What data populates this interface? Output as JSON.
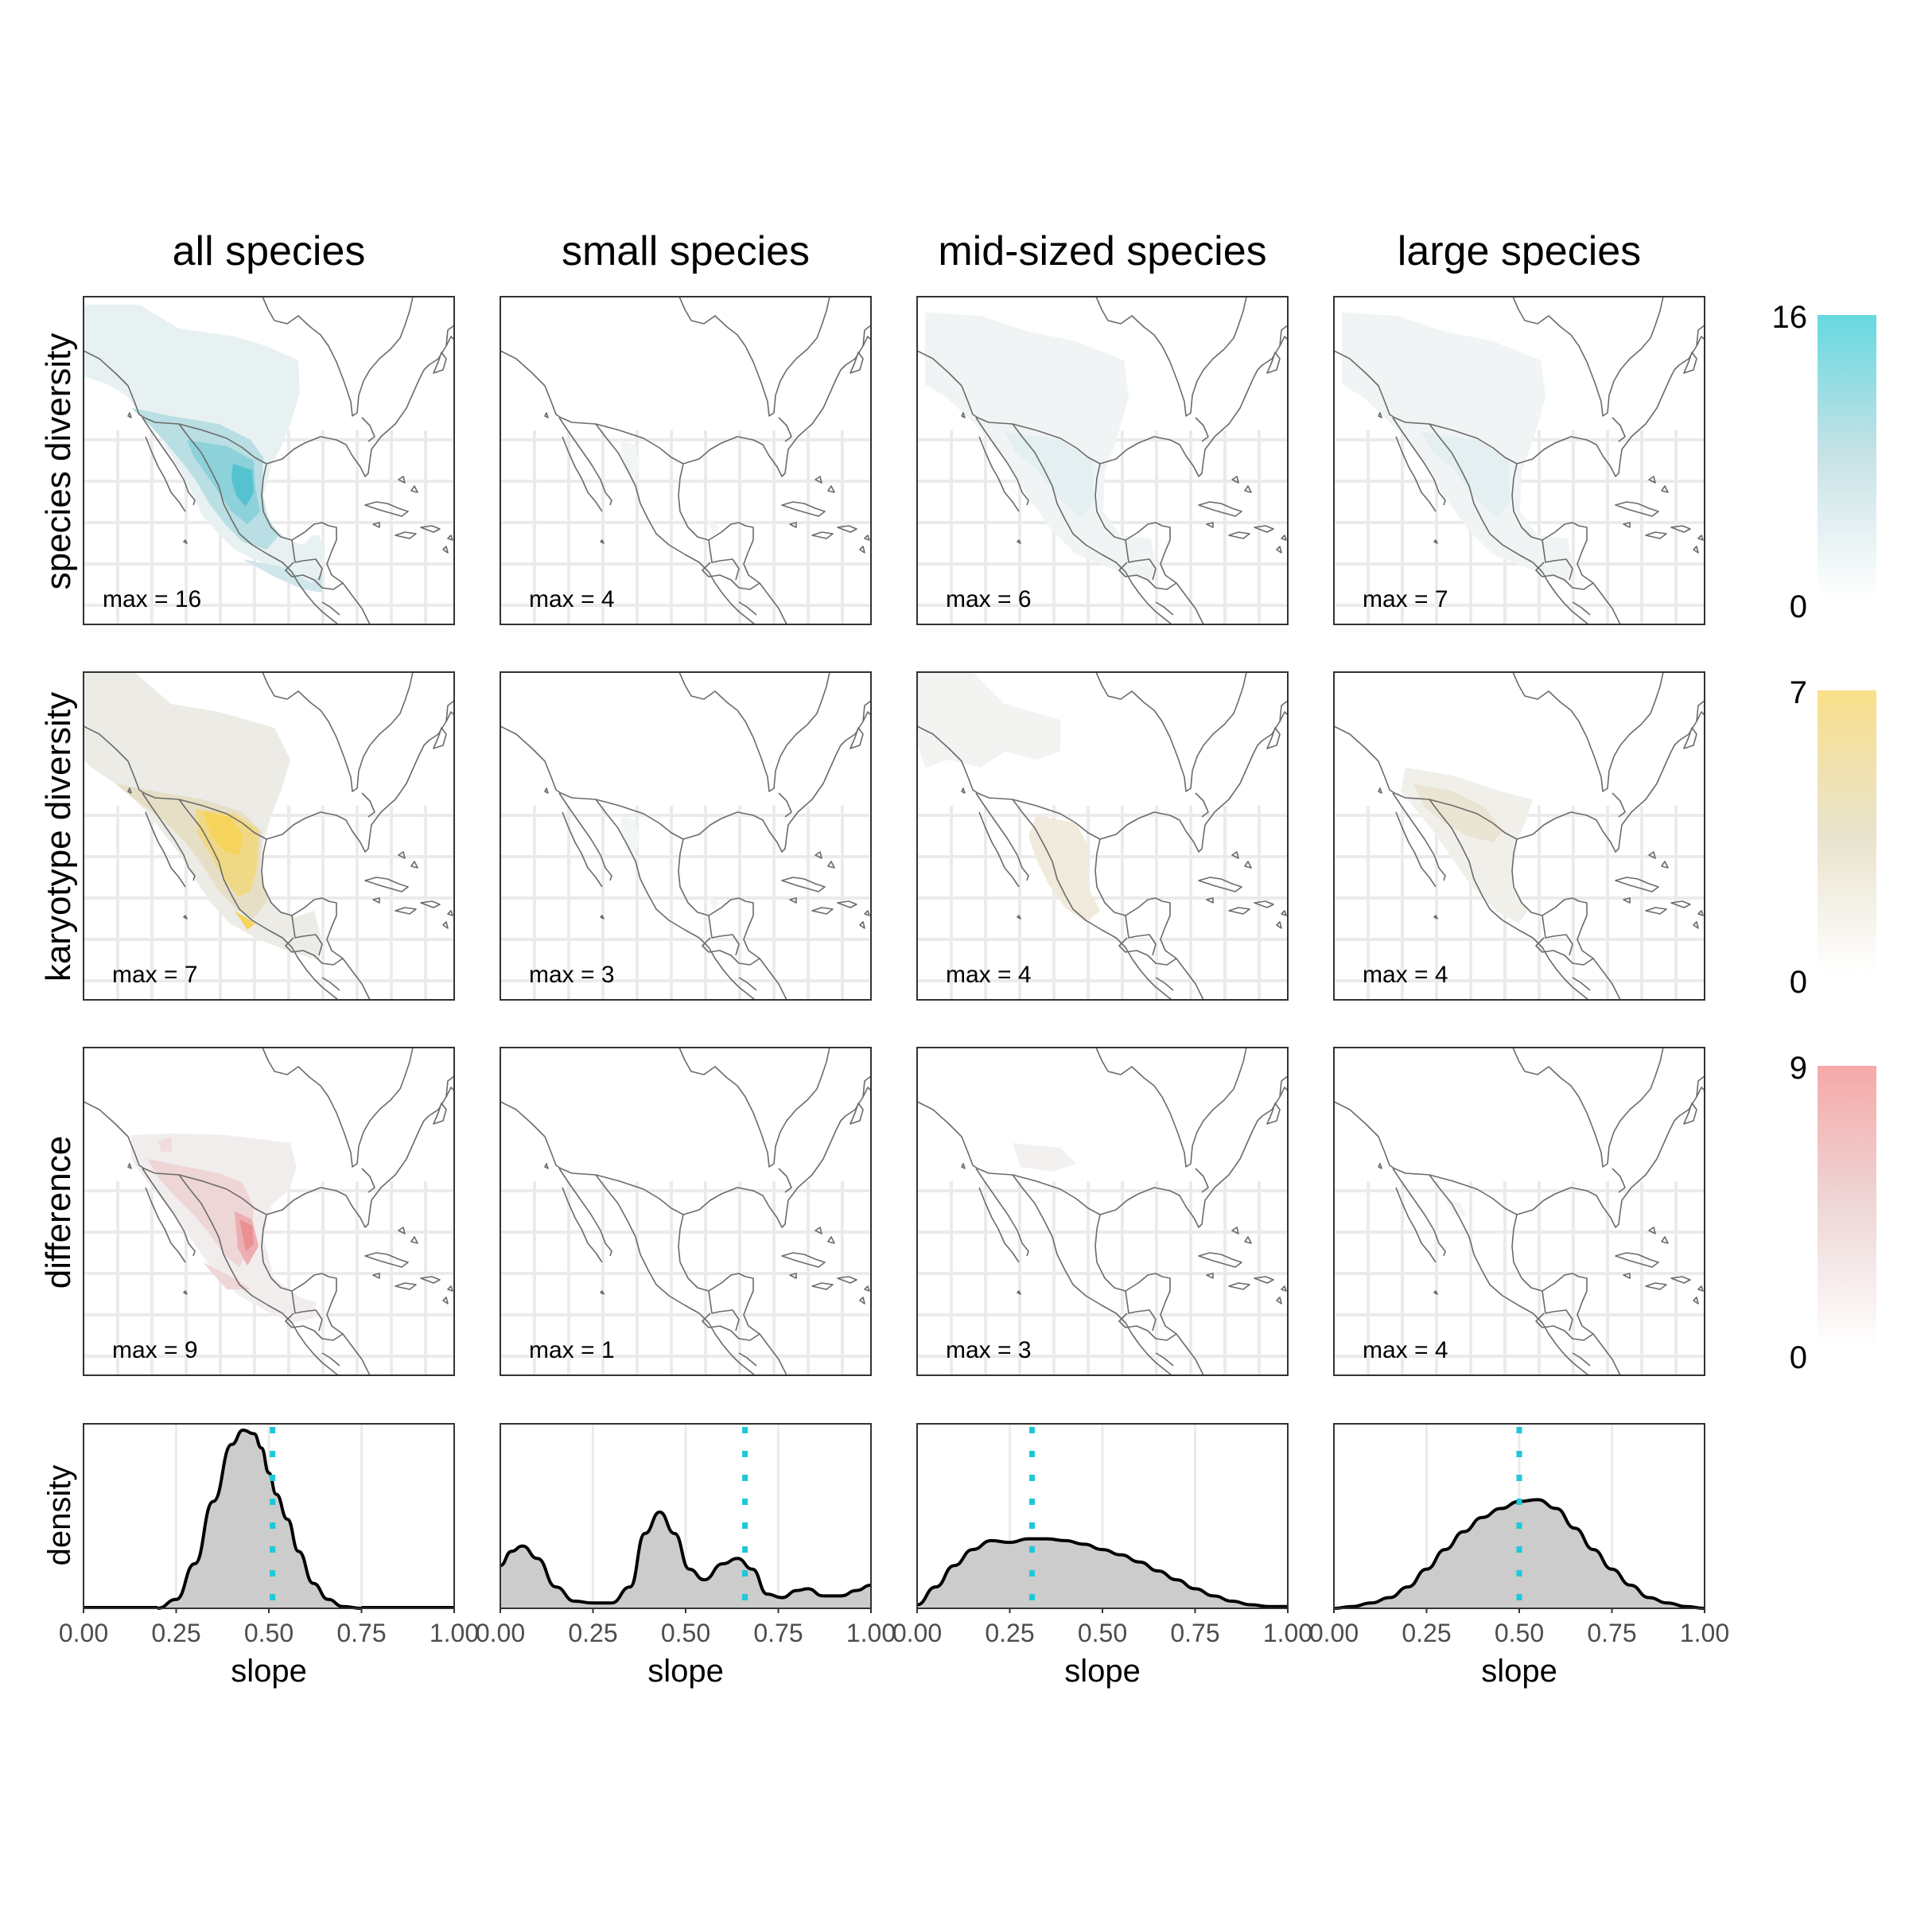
{
  "columns": [
    "all species",
    "small species",
    "mid-sized species",
    "large species"
  ],
  "rows": [
    "species diversity",
    "karyotype diversity",
    "difference"
  ],
  "max_prefix": "max = ",
  "maps": [
    [
      {
        "max": "16"
      },
      {
        "max": "4"
      },
      {
        "max": "6"
      },
      {
        "max": "7"
      }
    ],
    [
      {
        "max": "7"
      },
      {
        "max": "3"
      },
      {
        "max": "4"
      },
      {
        "max": "4"
      }
    ],
    [
      {
        "max": "9"
      },
      {
        "max": "1"
      },
      {
        "max": "3"
      },
      {
        "max": "4"
      }
    ]
  ],
  "legends": [
    {
      "max": "16",
      "min": "0",
      "color": "#66d9e0"
    },
    {
      "max": "7",
      "min": "0",
      "color": "#f9e08a"
    },
    {
      "max": "9",
      "min": "0",
      "color": "#f6a9a9"
    }
  ],
  "colors": {
    "species": "#5fc7d4",
    "karyotype": "#f3cf4d",
    "difference": "#e86f6f",
    "density_fill": "#cccccc",
    "dotted_line": "#1ec8d8",
    "map_outline": "#6b6b6b",
    "grid": "#ebebeb"
  },
  "chart_data": [
    {
      "type": "area",
      "title": "all species",
      "xlabel": "slope",
      "ylabel": "density",
      "xlim": [
        0,
        1
      ],
      "x_ticks": [
        "0.00",
        "0.25",
        "0.50",
        "0.75",
        "1.00"
      ],
      "observed_slope": 0.51,
      "x": [
        0.2,
        0.25,
        0.3,
        0.35,
        0.4,
        0.43,
        0.46,
        0.48,
        0.5,
        0.52,
        0.55,
        0.58,
        0.62,
        0.66,
        0.7,
        0.75
      ],
      "y": [
        0.0,
        0.05,
        0.25,
        0.6,
        0.92,
        1.0,
        0.98,
        0.9,
        0.76,
        0.64,
        0.5,
        0.32,
        0.14,
        0.05,
        0.01,
        0.0
      ]
    },
    {
      "type": "area",
      "title": "small species",
      "xlabel": "slope",
      "ylabel": "density",
      "xlim": [
        0,
        1
      ],
      "x_ticks": [
        "0.00",
        "0.25",
        "0.50",
        "0.75",
        "1.00"
      ],
      "observed_slope": 0.66,
      "x": [
        0.0,
        0.03,
        0.06,
        0.1,
        0.15,
        0.2,
        0.25,
        0.3,
        0.35,
        0.39,
        0.43,
        0.47,
        0.51,
        0.55,
        0.6,
        0.64,
        0.68,
        0.72,
        0.76,
        0.8,
        0.83,
        0.87,
        0.92,
        0.96,
        1.0
      ],
      "y": [
        0.24,
        0.32,
        0.35,
        0.28,
        0.12,
        0.04,
        0.03,
        0.03,
        0.12,
        0.42,
        0.54,
        0.42,
        0.22,
        0.16,
        0.25,
        0.28,
        0.22,
        0.08,
        0.06,
        0.1,
        0.11,
        0.07,
        0.07,
        0.1,
        0.13
      ]
    },
    {
      "type": "area",
      "title": "mid-sized species",
      "xlabel": "slope",
      "ylabel": "density",
      "xlim": [
        0,
        1
      ],
      "x_ticks": [
        "0.00",
        "0.25",
        "0.50",
        "0.75",
        "1.00"
      ],
      "observed_slope": 0.31,
      "x": [
        0.0,
        0.05,
        0.1,
        0.15,
        0.2,
        0.25,
        0.3,
        0.35,
        0.4,
        0.45,
        0.5,
        0.55,
        0.6,
        0.65,
        0.7,
        0.75,
        0.8,
        0.85,
        0.9,
        0.95,
        1.0
      ],
      "y": [
        0.02,
        0.12,
        0.24,
        0.33,
        0.38,
        0.37,
        0.39,
        0.39,
        0.38,
        0.36,
        0.33,
        0.3,
        0.26,
        0.21,
        0.16,
        0.11,
        0.07,
        0.04,
        0.02,
        0.01,
        0.01
      ]
    },
    {
      "type": "area",
      "title": "large species",
      "xlabel": "slope",
      "ylabel": "density",
      "xlim": [
        0,
        1
      ],
      "x_ticks": [
        "0.00",
        "0.25",
        "0.50",
        "0.75",
        "1.00"
      ],
      "observed_slope": 0.5,
      "x": [
        0.0,
        0.05,
        0.1,
        0.15,
        0.2,
        0.25,
        0.3,
        0.35,
        0.4,
        0.45,
        0.5,
        0.55,
        0.6,
        0.65,
        0.7,
        0.75,
        0.8,
        0.85,
        0.9,
        0.95,
        1.0
      ],
      "y": [
        0.0,
        0.01,
        0.03,
        0.06,
        0.12,
        0.22,
        0.33,
        0.43,
        0.51,
        0.56,
        0.6,
        0.61,
        0.56,
        0.45,
        0.33,
        0.22,
        0.13,
        0.06,
        0.03,
        0.01,
        0.0
      ]
    }
  ]
}
